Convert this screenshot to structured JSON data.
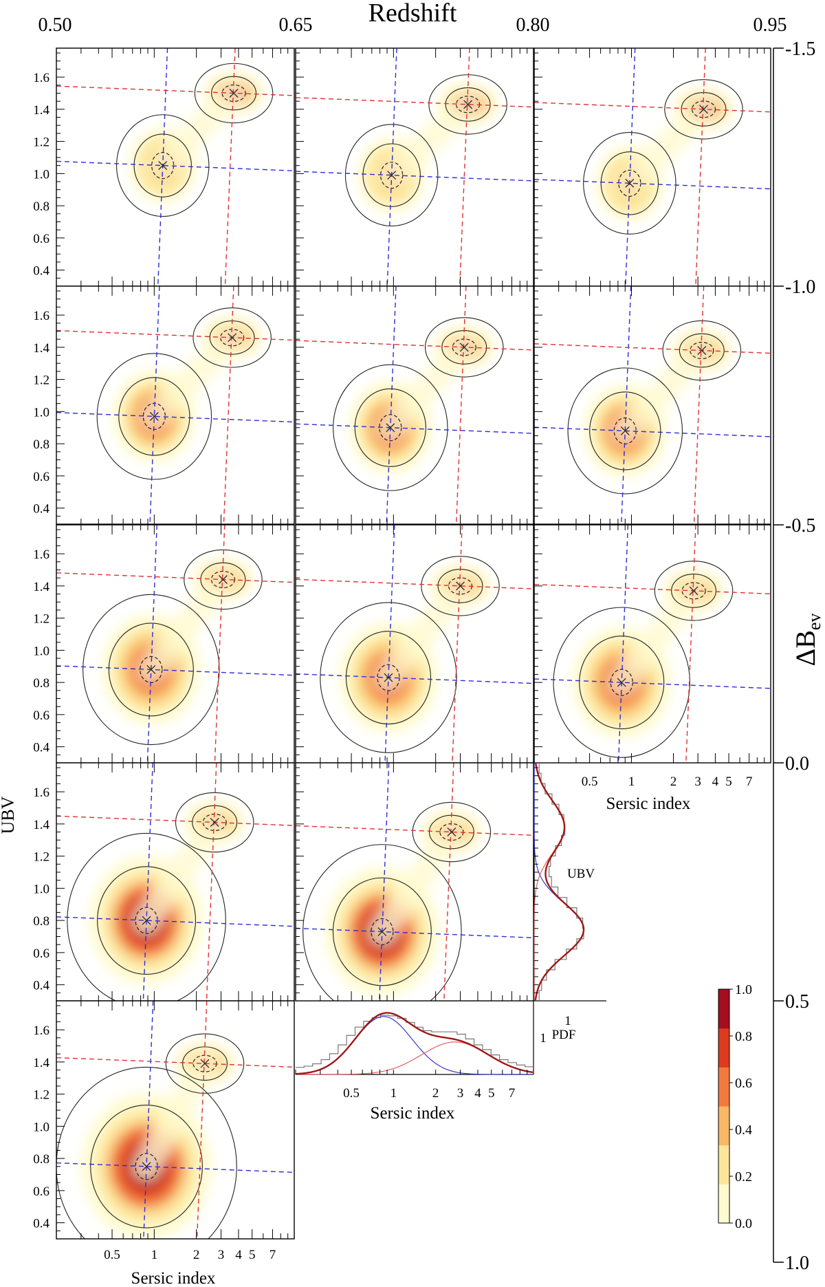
{
  "chart_data": {
    "type": "heatmap",
    "description_labels": {
      "top_axis_label": "Redshift",
      "right_axis_label": "ΔB",
      "right_axis_label_sub": "ev",
      "left_axis_label": "UBV",
      "bottom_axis_label": "Sersic index"
    },
    "top_ticks": [
      "0.50",
      "0.65",
      "0.80",
      "0.95"
    ],
    "right_ticks": [
      "-1.5",
      "-1.0",
      "-0.5",
      "0.0",
      "0.5",
      "1.0"
    ],
    "y_ticks": [
      "1.6",
      "1.4",
      "1.2",
      "1.0",
      "0.8",
      "0.6",
      "0.4"
    ],
    "y_tick_values": [
      1.6,
      1.4,
      1.2,
      1.0,
      0.8,
      0.6,
      0.4
    ],
    "ylim": [
      0.3,
      1.78
    ],
    "x_scale": "log",
    "xlim": [
      0.2,
      10
    ],
    "x_ticks": [
      "0.5",
      "1",
      "2",
      "3",
      "4",
      "5",
      "7"
    ],
    "x_tick_values": [
      0.5,
      1,
      2,
      3,
      4,
      5,
      7
    ],
    "colorbar": {
      "ticks": [
        "0.0",
        "0.2",
        "0.4",
        "0.6",
        "0.8",
        "1.0"
      ],
      "colors": [
        "#fffbd0",
        "#fde69a",
        "#f9b866",
        "#f37a3d",
        "#dd3b1f",
        "#a50d21"
      ]
    },
    "colors": {
      "blue_line": "#2b2bd9",
      "red_line": "#e03030",
      "fit_total": "#a01818",
      "fit_red": "#e06060",
      "fit_blue": "#3a3acf",
      "histogram": "#777777"
    },
    "panels": [
      {
        "row": 0,
        "col": 0,
        "blue_n": 1.15,
        "blue_ubv": 1.05,
        "red_n": 3.7,
        "red_ubv": 1.5,
        "blue_w": 1.0,
        "red_w": 1.0
      },
      {
        "row": 0,
        "col": 1,
        "blue_n": 0.97,
        "blue_ubv": 0.99,
        "red_n": 3.4,
        "red_ubv": 1.43,
        "blue_w": 1.0,
        "red_w": 1.0
      },
      {
        "row": 0,
        "col": 2,
        "blue_n": 0.97,
        "blue_ubv": 0.94,
        "red_n": 3.3,
        "red_ubv": 1.4,
        "blue_w": 1.0,
        "red_w": 1.0
      },
      {
        "row": 1,
        "col": 0,
        "blue_n": 1.0,
        "blue_ubv": 0.97,
        "red_n": 3.6,
        "red_ubv": 1.46,
        "blue_w": 1.0,
        "red_w": 1.0
      },
      {
        "row": 1,
        "col": 1,
        "blue_n": 0.95,
        "blue_ubv": 0.9,
        "red_n": 3.2,
        "red_ubv": 1.4,
        "blue_w": 1.0,
        "red_w": 1.0
      },
      {
        "row": 1,
        "col": 2,
        "blue_n": 0.9,
        "blue_ubv": 0.88,
        "red_n": 3.2,
        "red_ubv": 1.38,
        "blue_w": 1.0,
        "red_w": 1.0
      },
      {
        "row": 2,
        "col": 0,
        "blue_n": 0.95,
        "blue_ubv": 0.88,
        "red_n": 3.1,
        "red_ubv": 1.44,
        "blue_w": 1.0,
        "red_w": 1.0
      },
      {
        "row": 2,
        "col": 1,
        "blue_n": 0.92,
        "blue_ubv": 0.83,
        "red_n": 3.0,
        "red_ubv": 1.4,
        "blue_w": 1.0,
        "red_w": 1.0
      },
      {
        "row": 2,
        "col": 2,
        "blue_n": 0.85,
        "blue_ubv": 0.8,
        "red_n": 2.8,
        "red_ubv": 1.37,
        "blue_w": 1.0,
        "red_w": 1.0
      },
      {
        "row": 3,
        "col": 0,
        "blue_n": 0.88,
        "blue_ubv": 0.8,
        "red_n": 2.7,
        "red_ubv": 1.41,
        "blue_w": 1.0,
        "red_w": 1.0
      },
      {
        "row": 3,
        "col": 1,
        "blue_n": 0.83,
        "blue_ubv": 0.73,
        "red_n": 2.6,
        "red_ubv": 1.35,
        "blue_w": 1.0,
        "red_w": 1.0
      },
      {
        "row": 4,
        "col": 0,
        "blue_n": 0.88,
        "blue_ubv": 0.75,
        "red_n": 2.3,
        "red_ubv": 1.39,
        "blue_w": 1.0,
        "red_w": 1.0
      }
    ],
    "marginal_x": {
      "xlabel": "Sersic index",
      "ylabel": "PDF",
      "ytick": "1",
      "histogram": [
        0.12,
        0.14,
        0.18,
        0.25,
        0.35,
        0.5,
        0.66,
        0.8,
        0.9,
        0.96,
        1.0,
        0.99,
        0.95,
        0.88,
        0.8,
        0.74,
        0.72,
        0.72,
        0.72,
        0.68,
        0.6,
        0.5,
        0.42,
        0.33,
        0.25,
        0.2,
        0.16,
        0.13
      ]
    },
    "marginal_y": {
      "label": "UBV",
      "xtick": "1",
      "histogram": [
        0.1,
        0.15,
        0.25,
        0.42,
        0.65,
        0.86,
        1.0,
        0.98,
        0.86,
        0.66,
        0.48,
        0.35,
        0.3,
        0.33,
        0.43,
        0.55,
        0.62,
        0.6,
        0.5,
        0.36,
        0.22,
        0.14,
        0.1
      ]
    }
  }
}
